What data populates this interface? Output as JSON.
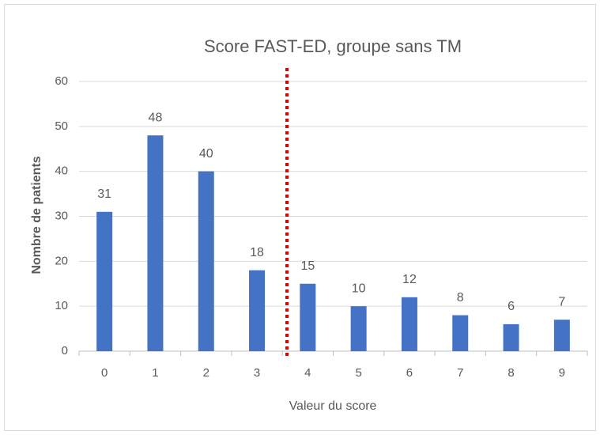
{
  "chart_data": {
    "type": "bar",
    "title": "Score FAST-ED, groupe sans TM",
    "x_label": "Valeur du score",
    "y_label": "Nombre de patients",
    "categories": [
      "0",
      "1",
      "2",
      "3",
      "4",
      "5",
      "6",
      "7",
      "8",
      "9"
    ],
    "values": [
      31,
      48,
      40,
      18,
      15,
      10,
      12,
      8,
      6,
      7
    ],
    "color": "#4472c4",
    "ylim": [
      0,
      60
    ],
    "yticks": [
      0,
      10,
      20,
      30,
      40,
      50,
      60
    ],
    "grid": true
  }
}
